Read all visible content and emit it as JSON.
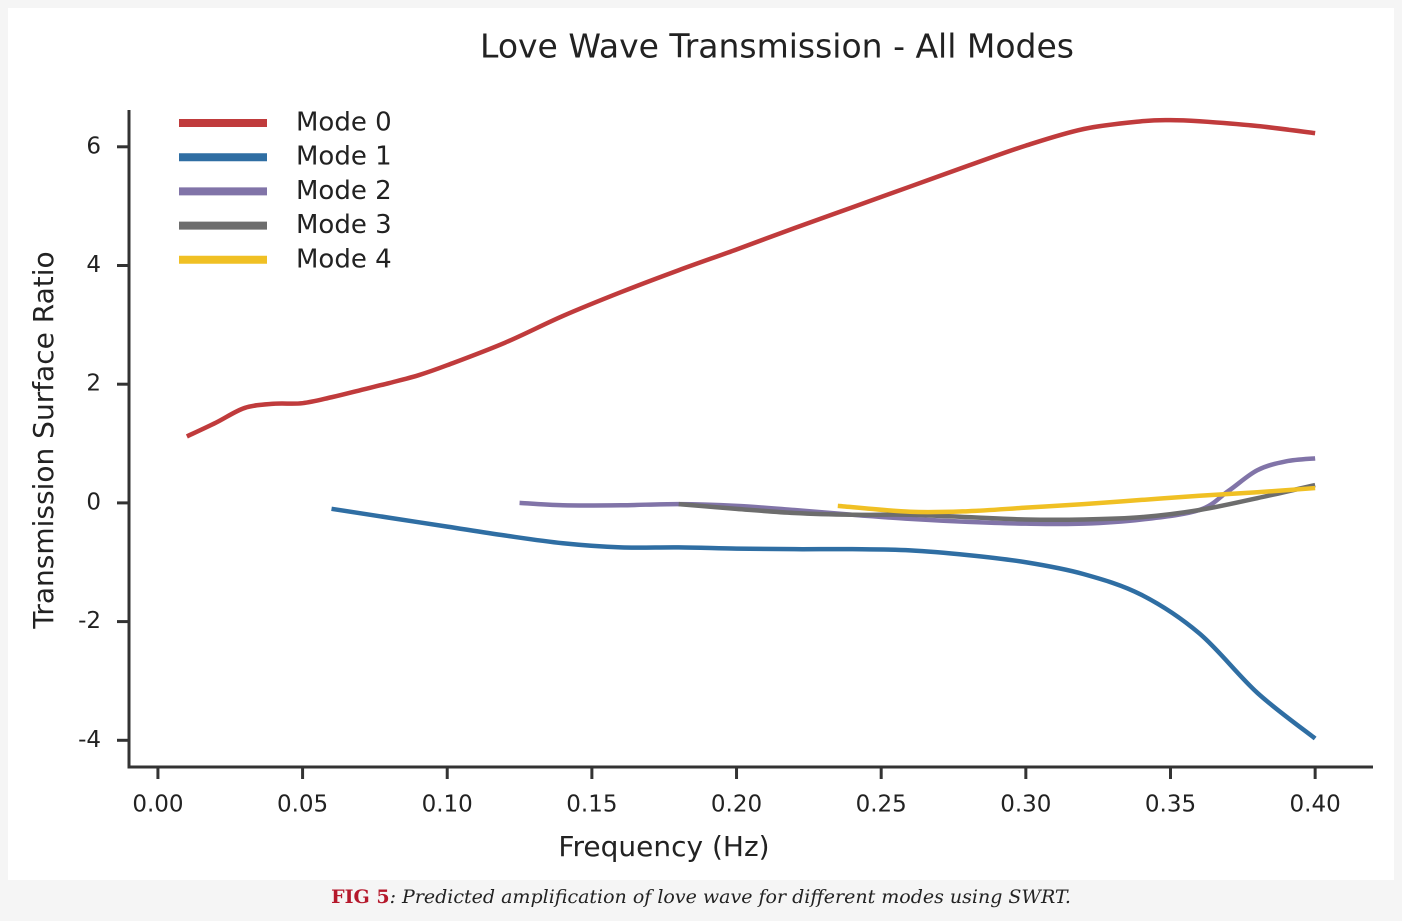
{
  "chart_data": {
    "type": "line",
    "title": "Love Wave Transmission - All Modes",
    "xlabel": "Frequency (Hz)",
    "ylabel": "Transmission Surface Ratio",
    "xlim": [
      -0.01,
      0.42
    ],
    "ylim": [
      -4.45,
      6.62
    ],
    "xticks": [
      {
        "value": 0,
        "label": "0.00"
      },
      {
        "value": 0.05,
        "label": "0.05"
      },
      {
        "value": 0.1,
        "label": "0.10"
      },
      {
        "value": 0.15,
        "label": "0.15"
      },
      {
        "value": 0.2,
        "label": "0.20"
      },
      {
        "value": 0.25,
        "label": "0.25"
      },
      {
        "value": 0.3,
        "label": "0.30"
      },
      {
        "value": 0.35,
        "label": "0.35"
      },
      {
        "value": 0.4,
        "label": "0.40"
      }
    ],
    "yticks": [
      -4,
      -2,
      0,
      2,
      4,
      6
    ],
    "grid": false,
    "legend": "upper left",
    "series": [
      {
        "name": "Mode 0",
        "color": "#c03b3c",
        "x": [
          0.01,
          0.02,
          0.03,
          0.04,
          0.05,
          0.06,
          0.07,
          0.08,
          0.09,
          0.1,
          0.12,
          0.14,
          0.16,
          0.18,
          0.2,
          0.22,
          0.24,
          0.26,
          0.28,
          0.3,
          0.32,
          0.34,
          0.35,
          0.36,
          0.38,
          0.4
        ],
        "values": [
          1.12,
          1.35,
          1.6,
          1.67,
          1.68,
          1.78,
          1.9,
          2.02,
          2.15,
          2.32,
          2.7,
          3.15,
          3.55,
          3.92,
          4.27,
          4.63,
          4.98,
          5.33,
          5.68,
          6.02,
          6.3,
          6.43,
          6.45,
          6.43,
          6.35,
          6.23
        ]
      },
      {
        "name": "Mode 1",
        "color": "#2f6ea3",
        "x": [
          0.06,
          0.08,
          0.1,
          0.12,
          0.14,
          0.16,
          0.18,
          0.2,
          0.22,
          0.24,
          0.26,
          0.28,
          0.3,
          0.32,
          0.34,
          0.36,
          0.38,
          0.4
        ],
        "values": [
          -0.1,
          -0.25,
          -0.4,
          -0.55,
          -0.68,
          -0.75,
          -0.75,
          -0.77,
          -0.78,
          -0.78,
          -0.8,
          -0.88,
          -1.0,
          -1.2,
          -1.55,
          -2.2,
          -3.2,
          -3.97
        ]
      },
      {
        "name": "Mode 2",
        "color": "#8174a8",
        "x": [
          0.125,
          0.14,
          0.16,
          0.18,
          0.2,
          0.22,
          0.24,
          0.26,
          0.28,
          0.3,
          0.32,
          0.34,
          0.36,
          0.37,
          0.38,
          0.39,
          0.4
        ],
        "values": [
          0.0,
          -0.04,
          -0.04,
          -0.02,
          -0.05,
          -0.12,
          -0.2,
          -0.27,
          -0.32,
          -0.35,
          -0.35,
          -0.28,
          -0.12,
          0.2,
          0.55,
          0.7,
          0.75
        ]
      },
      {
        "name": "Mode 3",
        "color": "#6d6d6d",
        "x": [
          0.18,
          0.2,
          0.22,
          0.24,
          0.26,
          0.28,
          0.3,
          0.32,
          0.34,
          0.36,
          0.38,
          0.4
        ],
        "values": [
          -0.02,
          -0.1,
          -0.17,
          -0.2,
          -0.2,
          -0.24,
          -0.28,
          -0.28,
          -0.24,
          -0.12,
          0.08,
          0.3
        ]
      },
      {
        "name": "Mode 4",
        "color": "#f0c024",
        "x": [
          0.235,
          0.26,
          0.28,
          0.3,
          0.32,
          0.34,
          0.36,
          0.38,
          0.4
        ],
        "values": [
          -0.05,
          -0.15,
          -0.14,
          -0.08,
          -0.02,
          0.05,
          0.12,
          0.18,
          0.25
        ]
      }
    ]
  },
  "figure": {
    "label": "FIG 5",
    "caption": ": Predicted amplification of love wave for different modes using SWRT."
  }
}
